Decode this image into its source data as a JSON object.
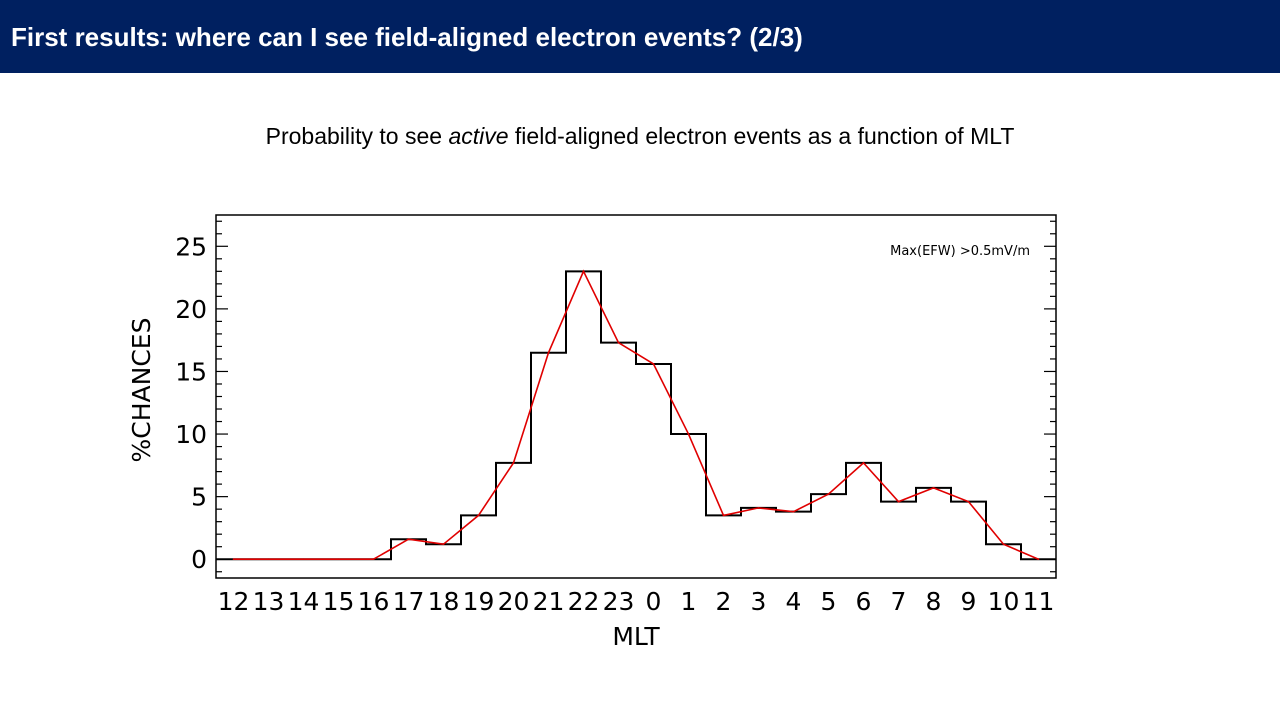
{
  "header": {
    "title": "First results: where can I see field-aligned electron events? (2/3)",
    "background_color": "#002060",
    "text_color": "#FFFFFF"
  },
  "subtitle": {
    "before": "Probability to see ",
    "emphasis": "active",
    "after": " field-aligned electron events as a function of MLT"
  },
  "chart_data": {
    "type": "line",
    "xlabel": "MLT",
    "ylabel": "%CHANCES",
    "annotation": "Max(EFW) >0.5mV/m",
    "categories": [
      "12",
      "13",
      "14",
      "15",
      "16",
      "17",
      "18",
      "19",
      "20",
      "21",
      "22",
      "23",
      "0",
      "1",
      "2",
      "3",
      "4",
      "5",
      "6",
      "7",
      "8",
      "9",
      "10",
      "11"
    ],
    "y_ticks": [
      "0",
      "5",
      "10",
      "15",
      "20",
      "25"
    ],
    "ylim": [
      -1.5,
      27.5
    ],
    "grid": false,
    "series": [
      {
        "style": "histogram-steps",
        "color": "#000000",
        "values": [
          0,
          0,
          0,
          0,
          0,
          1.6,
          1.2,
          3.5,
          7.7,
          16.5,
          23.0,
          17.3,
          15.6,
          10.0,
          3.5,
          4.1,
          3.8,
          5.2,
          7.7,
          4.6,
          5.7,
          4.6,
          1.2,
          0
        ]
      },
      {
        "style": "line",
        "color": "#E00000",
        "values": [
          0,
          0,
          0,
          0,
          0,
          1.6,
          1.2,
          3.5,
          7.7,
          16.5,
          23.0,
          17.3,
          15.6,
          10.0,
          3.5,
          4.1,
          3.8,
          5.2,
          7.7,
          4.6,
          5.7,
          4.6,
          1.2,
          0
        ]
      }
    ]
  }
}
